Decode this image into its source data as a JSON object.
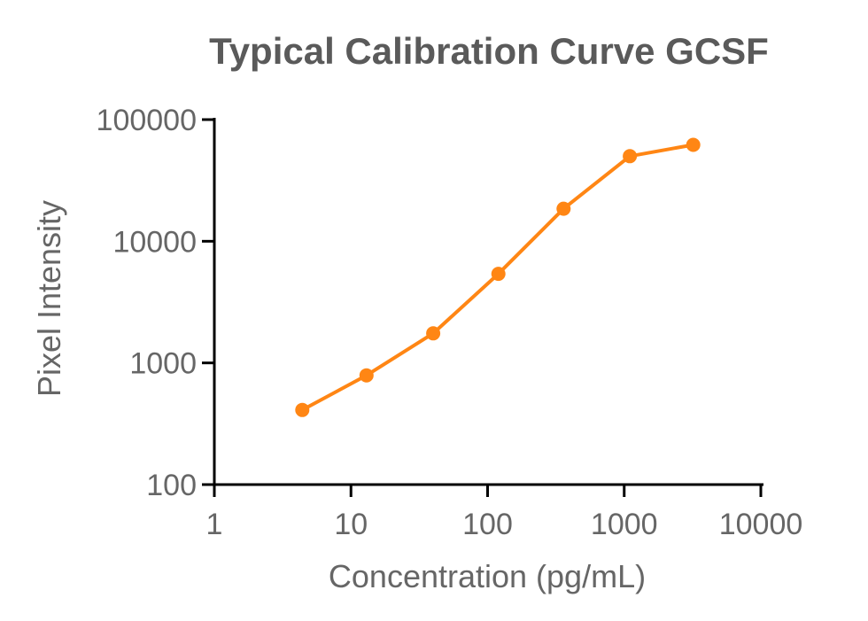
{
  "chart_data": {
    "type": "line",
    "title": "Typical Calibration Curve GCSF",
    "xlabel": "Concentration (pg/mL)",
    "ylabel": "Pixel Intensity",
    "xscale": "log",
    "yscale": "log",
    "xlim": [
      1,
      10000
    ],
    "ylim": [
      100,
      100000
    ],
    "x_ticks": [
      1,
      10,
      100,
      1000,
      10000
    ],
    "x_tick_labels": [
      "1",
      "10",
      "100",
      "1000",
      "10000"
    ],
    "y_ticks": [
      100,
      1000,
      10000,
      100000
    ],
    "y_tick_labels": [
      "100",
      "1000",
      "10000",
      "100000"
    ],
    "grid": false,
    "legend": "none",
    "series": [
      {
        "color": "#ff8614",
        "x": [
          4.4,
          13,
          40,
          120,
          360,
          1100,
          3200
        ],
        "y": [
          410,
          790,
          1750,
          5400,
          18500,
          50000,
          62000
        ]
      }
    ]
  }
}
